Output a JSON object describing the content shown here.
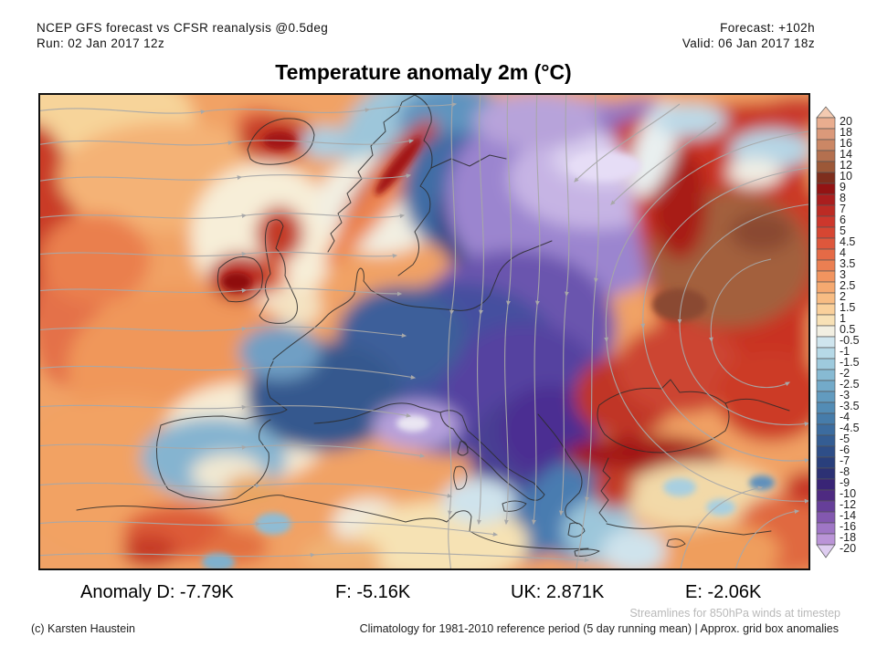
{
  "header": {
    "left_line1": "NCEP GFS forecast vs CFSR reanalysis @0.5deg",
    "left_line2": "Run: 02 Jan 2017 12z",
    "right_line1": "Forecast: +102h",
    "right_line2": "Valid: 06 Jan 2017 18z"
  },
  "title": "Temperature anomaly 2m (°C)",
  "stats": {
    "anomaly": "Anomaly D: -7.79K",
    "f": "F: -5.16K",
    "uk": "UK: 2.871K",
    "e": "E: -2.06K"
  },
  "footer": {
    "streamlines_note": "Streamlines for 850hPa winds at timestep",
    "climatology_note": "Climatology for 1981-2010 reference period (5 day running mean) | Approx. grid box anomalies",
    "copyright": "(c) Karsten Haustein"
  },
  "colorbar": {
    "unit": "°C",
    "ticks": [
      "20",
      "18",
      "16",
      "14",
      "12",
      "10",
      "9",
      "8",
      "7",
      "6",
      "5",
      "4.5",
      "4",
      "3.5",
      "3",
      "2.5",
      "2",
      "1.5",
      "1",
      "0.5",
      "-0.5",
      "-1",
      "-1.5",
      "-2",
      "-2.5",
      "-3",
      "-3.5",
      "-4",
      "-4.5",
      "-5",
      "-6",
      "-7",
      "-8",
      "-9",
      "-10",
      "-12",
      "-14",
      "-16",
      "-18",
      "-20"
    ],
    "triangle_top_color": "#f3cab1",
    "triangle_bottom_color": "#decdf0",
    "band_colors": [
      "#e9ad8f",
      "#db997a",
      "#cb8765",
      "#b4704f",
      "#9c5838",
      "#7e2e1d",
      "#931313",
      "#aa1e1e",
      "#bc2b24",
      "#cd372c",
      "#d64632",
      "#de573c",
      "#e56a46",
      "#eb7f52",
      "#f1945f",
      "#f5a970",
      "#f8bc83",
      "#fad09b",
      "#f8e1b6",
      "#f2efe2",
      "#cfe5ee",
      "#b6d9e7",
      "#9ecadd",
      "#87bad3",
      "#73aac9",
      "#629bbf",
      "#538cb5",
      "#467caa",
      "#3c6c9f",
      "#345d93",
      "#2e4e88",
      "#293f7c",
      "#2c3174",
      "#392476",
      "#4e2a81",
      "#663f99",
      "#8358af",
      "#9f76c5",
      "#ba94d7"
    ],
    "label_color": "#222",
    "cell_outline_color": "#555"
  },
  "map": {
    "streamline_color": "#a8a8a8",
    "coastline_color": "#2b2b2b",
    "warm_base_color": "#f1a265",
    "cold_core_color": "#cfc0e8",
    "warm_core_color": "#a3603e"
  }
}
